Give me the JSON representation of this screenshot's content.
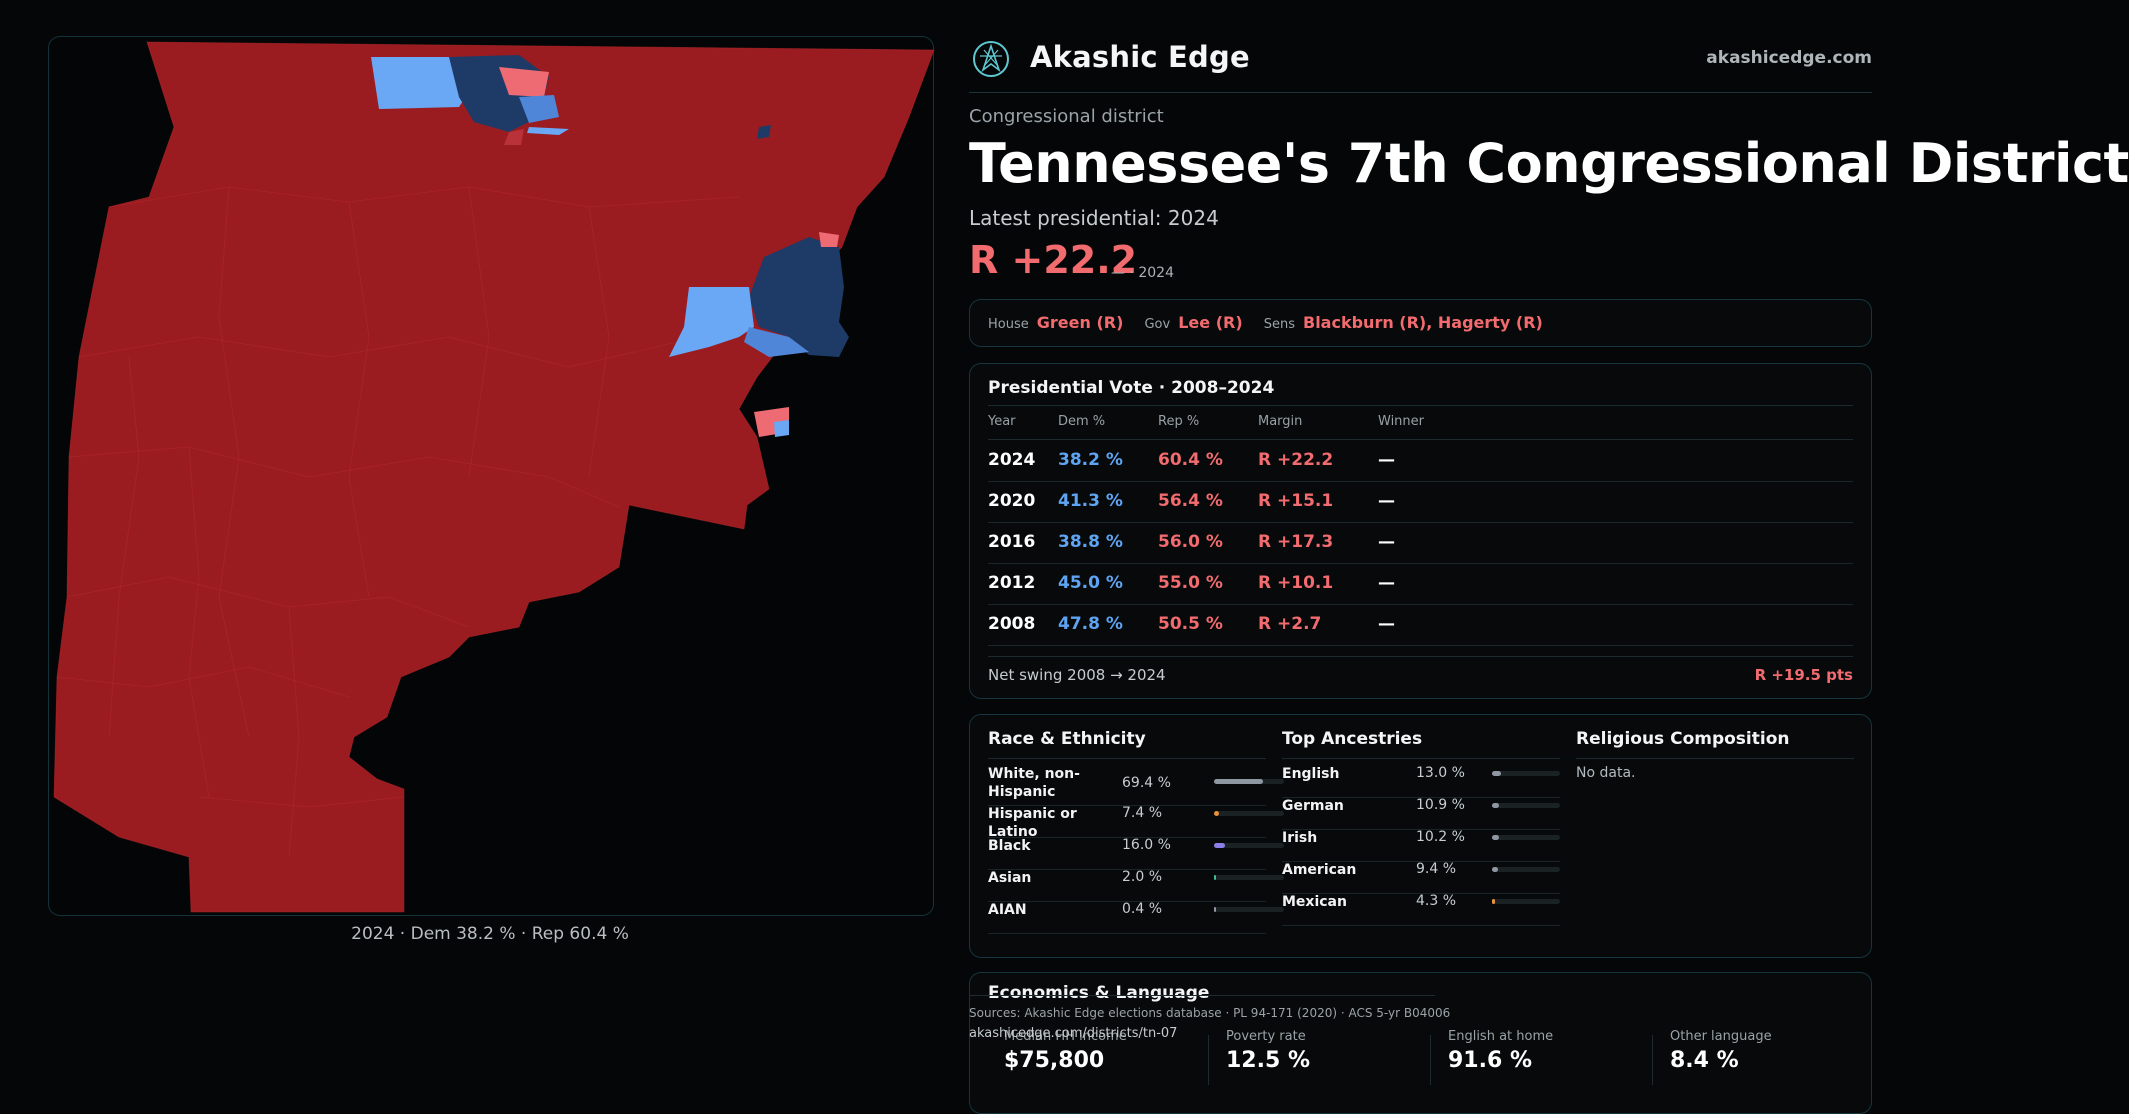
{
  "map": {
    "caption": "2024 · Dem 38.2 % · Rep 60.4 %",
    "colors": {
      "rep": "#9b1c20",
      "dem_light": "#6aa7f5",
      "dem_dark": "#1e3a66",
      "rep_light": "#ee6b73"
    }
  },
  "header": {
    "brand": "Akashic Edge",
    "site": "akashicedge.com",
    "logo_icon": "compass-emblem-icon"
  },
  "district": {
    "kicker": "Congressional district",
    "title": "Tennessee's  7th Congressional District",
    "latest": "Latest presidential: 2024",
    "margin": "R +22.2",
    "margin_sub": "— · 2024"
  },
  "officials": [
    {
      "label": "House",
      "value": "Green (R)"
    },
    {
      "label": "Gov",
      "value": "Lee (R)"
    },
    {
      "label": "Sens",
      "value": "Blackburn (R), Hagerty (R)"
    }
  ],
  "presidential": {
    "title": "Presidential Vote · 2008–2024",
    "columns": [
      "Year",
      "Dem %",
      "Rep %",
      "Margin",
      "Winner"
    ],
    "rows": [
      {
        "year": "2024",
        "dem": "38.2 %",
        "rep": "60.4 %",
        "margin": "R +22.2",
        "winner": "—"
      },
      {
        "year": "2020",
        "dem": "41.3 %",
        "rep": "56.4 %",
        "margin": "R +15.1",
        "winner": "—"
      },
      {
        "year": "2016",
        "dem": "38.8 %",
        "rep": "56.0 %",
        "margin": "R +17.3",
        "winner": "—"
      },
      {
        "year": "2012",
        "dem": "45.0 %",
        "rep": "55.0 %",
        "margin": "R +10.1",
        "winner": "—"
      },
      {
        "year": "2008",
        "dem": "47.8 %",
        "rep": "50.5 %",
        "margin": "R +2.7",
        "winner": "—"
      }
    ],
    "net_label": "Net swing 2008 → 2024",
    "net_value": "R +19.5 pts"
  },
  "race": {
    "title": "Race & Ethnicity",
    "rows": [
      {
        "label": "White, non-Hispanic",
        "pct": "69.4 %",
        "value": 69.4,
        "color": "#8f97a3"
      },
      {
        "label": "Hispanic or Latino",
        "pct": "7.4 %",
        "value": 7.4,
        "color": "#e8903a"
      },
      {
        "label": "Black",
        "pct": "16.0 %",
        "value": 16.0,
        "color": "#8b7ee6"
      },
      {
        "label": "Asian",
        "pct": "2.0 %",
        "value": 2.0,
        "color": "#3fbf8f"
      },
      {
        "label": "AIAN",
        "pct": "0.4 %",
        "value": 0.4,
        "color": "#8f97a3"
      }
    ]
  },
  "ancestry": {
    "title": "Top Ancestries",
    "rows": [
      {
        "label": "English",
        "pct": "13.0 %",
        "value": 13.0,
        "color": "#8f97a3"
      },
      {
        "label": "German",
        "pct": "10.9 %",
        "value": 10.9,
        "color": "#8f97a3"
      },
      {
        "label": "Irish",
        "pct": "10.2 %",
        "value": 10.2,
        "color": "#8f97a3"
      },
      {
        "label": "American",
        "pct": "9.4 %",
        "value": 9.4,
        "color": "#8f97a3"
      },
      {
        "label": "Mexican",
        "pct": "4.3 %",
        "value": 4.3,
        "color": "#e8903a"
      }
    ]
  },
  "religion": {
    "title": "Religious Composition",
    "empty": "No data."
  },
  "economics": {
    "title": "Economics & Language",
    "cells": [
      {
        "label": "Median HH income",
        "value": "$75,800"
      },
      {
        "label": "Poverty rate",
        "value": "12.5 %"
      },
      {
        "label": "English at home",
        "value": "91.6 %"
      },
      {
        "label": "Other language",
        "value": "8.4 %"
      }
    ]
  },
  "footer": {
    "sources": "Sources: Akashic Edge elections database · PL 94-171 (2020) · ACS 5-yr B04006",
    "url": "akashicedge.com/districts/tn-07"
  }
}
